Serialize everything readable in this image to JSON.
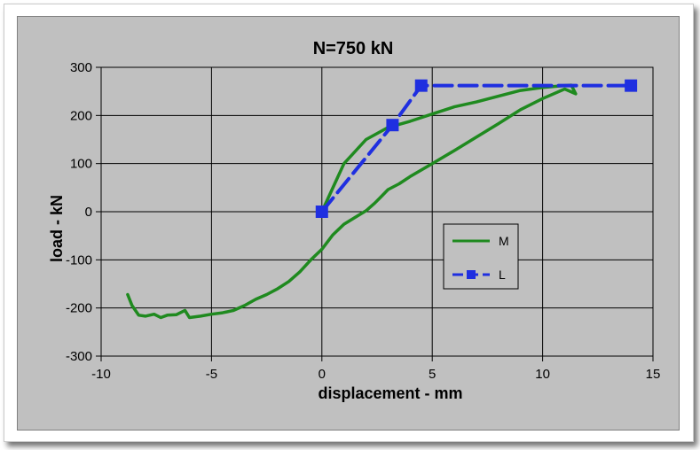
{
  "chart_data": {
    "type": "line",
    "title": "N=750 kN",
    "xlabel": "displacement - mm",
    "ylabel": "load - kN",
    "xlim": [
      -10,
      15
    ],
    "ylim": [
      -300,
      300
    ],
    "xticks": [
      -10,
      -5,
      0,
      5,
      10,
      15
    ],
    "yticks": [
      -300,
      -200,
      -100,
      0,
      100,
      200,
      300
    ],
    "grid": true,
    "legend_position": "right-center",
    "series": [
      {
        "name": "M",
        "color": "#1f8a1f",
        "marker": "none",
        "line_style": "solid",
        "x": [
          -8.8,
          -8.6,
          -8.3,
          -8.0,
          -7.6,
          -7.3,
          -7.0,
          -6.6,
          -6.2,
          -6.0,
          -5.5,
          -5.0,
          -4.5,
          -4.0,
          -3.5,
          -3.0,
          -2.5,
          -2.0,
          -1.5,
          -1.0,
          -0.5,
          0.0,
          0.5,
          1.0,
          1.5,
          2.0,
          2.4,
          2.7,
          3.0,
          3.5,
          4.0,
          5.0,
          6.0,
          7.0,
          8.0,
          9.0,
          10.0,
          11.0,
          11.5,
          11.3,
          11.0,
          10.0,
          9.0,
          8.0,
          7.0,
          6.0,
          5.0,
          4.0,
          3.0,
          2.0,
          1.0,
          0.0
        ],
        "y": [
          -172,
          -195,
          -215,
          -217,
          -213,
          -220,
          -215,
          -214,
          -205,
          -220,
          -217,
          -213,
          -210,
          -205,
          -195,
          -182,
          -172,
          -160,
          -145,
          -125,
          -100,
          -78,
          -48,
          -26,
          -12,
          2,
          18,
          32,
          46,
          58,
          73,
          100,
          127,
          155,
          183,
          212,
          235,
          255,
          245,
          263,
          262,
          258,
          252,
          240,
          228,
          218,
          203,
          188,
          175,
          150,
          100,
          0
        ]
      },
      {
        "name": "L",
        "color": "#1f2fe0",
        "marker": "square",
        "line_style": "dashed",
        "x": [
          0,
          3.2,
          4.5,
          14
        ],
        "y": [
          0,
          180,
          262,
          262
        ]
      }
    ]
  }
}
